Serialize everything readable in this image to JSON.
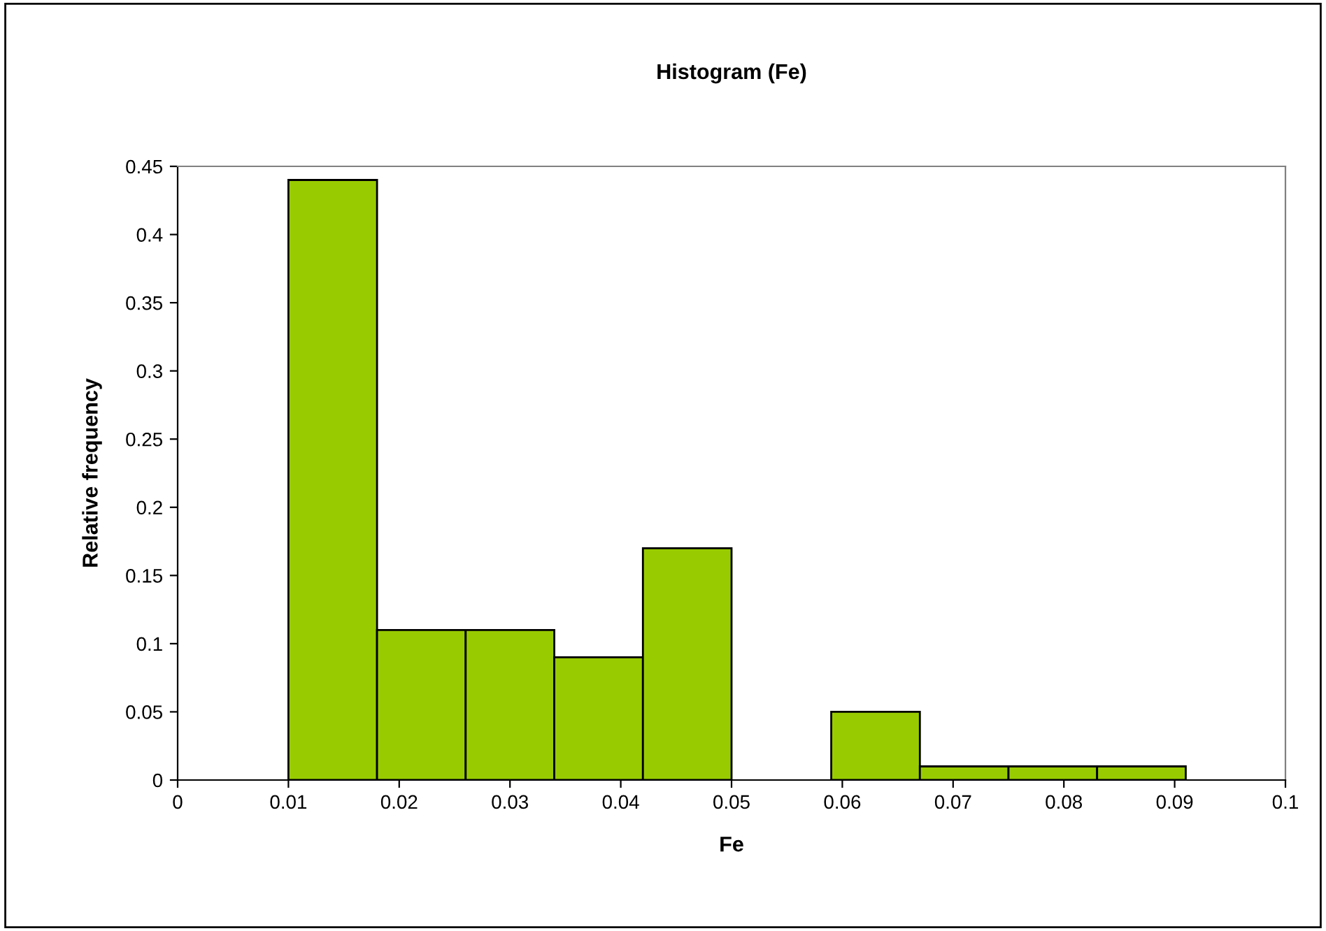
{
  "chart_data": {
    "type": "histogram",
    "title": "Histogram (Fe)",
    "xlabel": "Fe",
    "ylabel": "Relative frequency",
    "bins": [
      0.01,
      0.018,
      0.026,
      0.034,
      0.042,
      0.05,
      0.059,
      0.067,
      0.075,
      0.083,
      0.091
    ],
    "values": [
      0.44,
      0.11,
      0.11,
      0.09,
      0.17,
      0,
      0.05,
      0.01,
      0.01,
      0.01
    ],
    "color": "#99cc00",
    "xlim": [
      0,
      0.1
    ],
    "xticks": [
      0,
      0.01,
      0.02,
      0.03,
      0.04,
      0.05,
      0.06,
      0.07,
      0.08,
      0.09,
      0.1
    ],
    "ylim": [
      0,
      0.45
    ],
    "yticks": [
      0,
      0.05,
      0.1,
      0.15,
      0.2,
      0.25,
      0.3,
      0.35,
      0.4,
      0.45
    ],
    "grid": false,
    "legend": false
  }
}
